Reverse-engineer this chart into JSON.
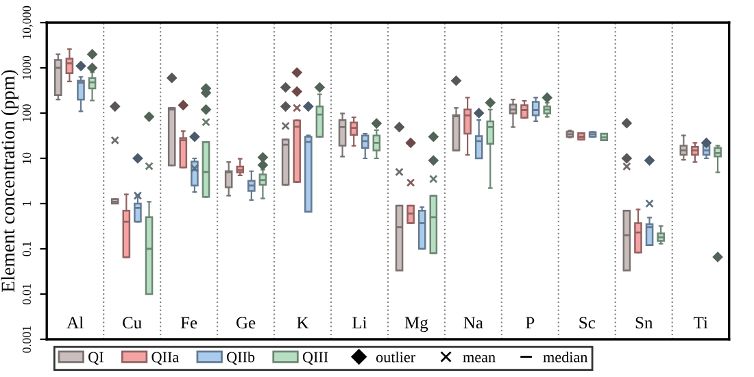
{
  "chart_data": {
    "type": "box",
    "ylabel": "Element concentration (ppm)",
    "categories": [
      "Al",
      "Cu",
      "Fe",
      "Ge",
      "K",
      "Li",
      "Mg",
      "Na",
      "P",
      "Sc",
      "Sn",
      "Ti"
    ],
    "log": "y",
    "ylim": [
      0.001,
      10000
    ],
    "yticks": [
      {
        "value": 0.001,
        "label": "0.001"
      },
      {
        "value": 0.01,
        "label": "0.01"
      },
      {
        "value": 0.1,
        "label": "0.1"
      },
      1,
      10,
      100,
      1000,
      {
        "value": 10000,
        "label": "10,000"
      }
    ],
    "grid": false,
    "legend": "bottom",
    "marker": "diamond",
    "annotations": [
      "outlier",
      "mean",
      "median"
    ],
    "series": [
      {
        "name": "QI",
        "color": "#c9bebc",
        "boxes": [
          {
            "low": 200,
            "q1": 250,
            "median": 1000,
            "q3": 1500,
            "high": 2000
          },
          {
            "low": 1.0,
            "q1": 1.0,
            "median": 1.1,
            "q3": 1.25,
            "high": 1.25,
            "mean": 25,
            "outliers": [
              140
            ]
          },
          {
            "low": 7,
            "q1": 7,
            "median": 120,
            "q3": 130,
            "high": 130,
            "outliers": [
              600
            ]
          },
          {
            "low": 1.5,
            "q1": 2.3,
            "median": 4.9,
            "q3": 5.2,
            "high": 8.3
          },
          {
            "low": 2.6,
            "q1": 2.6,
            "median": 20,
            "q3": 26,
            "high": 26,
            "mean": 52,
            "outliers": [
              140,
              370
            ]
          },
          {
            "low": 11,
            "q1": 19,
            "median": 49,
            "q3": 70,
            "high": 98
          },
          {
            "low": 0.033,
            "q1": 0.033,
            "median": 0.3,
            "q3": 0.9,
            "high": 0.9,
            "mean": 5,
            "outliers": [
              49
            ]
          },
          {
            "low": 15,
            "q1": 15,
            "median": 85,
            "q3": 90,
            "high": 130,
            "outliers": [
              520
            ]
          },
          {
            "low": 49,
            "q1": 98,
            "median": 120,
            "q3": 155,
            "high": 200
          },
          {
            "low": 29,
            "q1": 30,
            "median": 34,
            "q3": 39,
            "high": 41
          },
          {
            "low": 0.033,
            "q1": 0.033,
            "median": 0.2,
            "q3": 0.7,
            "high": 0.7,
            "mean": 6.6,
            "outliers": [
              10,
              60
            ]
          },
          {
            "low": 9.3,
            "q1": 12,
            "median": 15,
            "q3": 19,
            "high": 32
          }
        ]
      },
      {
        "name": "QIIa",
        "color": "#f4a3a3",
        "boxes": [
          {
            "low": 500,
            "q1": 760,
            "median": 1260,
            "q3": 1600,
            "high": 2600
          },
          {
            "low": 0.065,
            "q1": 0.065,
            "median": 0.4,
            "q3": 0.7,
            "high": 1.6
          },
          {
            "low": 6.3,
            "q1": 6.3,
            "median": 25,
            "q3": 28,
            "high": 40,
            "outliers": [
              150
            ]
          },
          {
            "low": 4.2,
            "q1": 4.9,
            "median": 5.5,
            "q3": 6.6,
            "high": 9.8
          },
          {
            "low": 3,
            "q1": 3,
            "median": 50,
            "q3": 69,
            "high": 69,
            "mean": 130,
            "outliers": [
              300,
              790
            ]
          },
          {
            "low": 19,
            "q1": 33,
            "median": 47,
            "q3": 62,
            "high": 81
          },
          {
            "low": 0.37,
            "q1": 0.37,
            "median": 0.6,
            "q3": 0.9,
            "high": 0.9,
            "mean": 2.9,
            "outliers": [
              22
            ]
          },
          {
            "low": 12,
            "q1": 35,
            "median": 89,
            "q3": 120,
            "high": 220
          },
          {
            "low": 78,
            "q1": 79,
            "median": 117,
            "q3": 150,
            "high": 186
          },
          {
            "low": 26,
            "q1": 26,
            "median": 30,
            "q3": 36,
            "high": 36
          },
          {
            "low": 0.083,
            "q1": 0.083,
            "median": 0.23,
            "q3": 0.37,
            "high": 0.74
          },
          {
            "low": 8.3,
            "q1": 12,
            "median": 15,
            "q3": 18,
            "high": 22
          }
        ]
      },
      {
        "name": "QIIb",
        "color": "#a9cbee",
        "boxes": [
          {
            "low": 110,
            "q1": 200,
            "median": 470,
            "q3": 520,
            "high": 630,
            "outliers": [
              1100
            ]
          },
          {
            "low": 0.4,
            "q1": 0.4,
            "median": 0.8,
            "q3": 1.0,
            "high": 1.5,
            "mean": 1.5,
            "outliers": [
              10
            ]
          },
          {
            "low": 1.8,
            "q1": 2.5,
            "median": 5.5,
            "q3": 8.5,
            "high": 10,
            "mean": 6,
            "outliers": [
              30
            ]
          },
          {
            "low": 1.2,
            "q1": 1.9,
            "median": 2.5,
            "q3": 3.2,
            "high": 5.2
          },
          {
            "low": 0.66,
            "q1": 0.66,
            "median": 23,
            "q3": 30,
            "high": 32,
            "outliers": [
              140
            ]
          },
          {
            "low": 10,
            "q1": 17,
            "median": 24,
            "q3": 32,
            "high": 35
          },
          {
            "low": 0.1,
            "q1": 0.1,
            "median": 0.37,
            "q3": 0.7,
            "high": 0.83
          },
          {
            "low": 10,
            "q1": 10,
            "median": 24,
            "q3": 31,
            "high": 70,
            "outliers": [
              100
            ]
          },
          {
            "low": 66,
            "q1": 89,
            "median": 117,
            "q3": 178,
            "high": 220
          },
          {
            "low": 30,
            "q1": 30,
            "median": 34,
            "q3": 38,
            "high": 38
          },
          {
            "low": 0.12,
            "q1": 0.12,
            "median": 0.3,
            "q3": 0.35,
            "high": 0.49,
            "mean": 1.0,
            "outliers": [
              9
            ]
          },
          {
            "low": 10,
            "q1": 12,
            "median": 15,
            "q3": 19,
            "high": 19,
            "outliers": [
              22
            ]
          }
        ]
      },
      {
        "name": "QIII",
        "color": "#b6dfc2",
        "boxes": [
          {
            "low": 190,
            "q1": 350,
            "median": 480,
            "q3": 600,
            "high": 800,
            "outliers": [
              1000,
              2000
            ]
          },
          {
            "low": 0.01,
            "q1": 0.01,
            "median": 0.1,
            "q3": 0.5,
            "high": 1.1,
            "mean": 6.7,
            "outliers": [
              83
            ]
          },
          {
            "low": 1.4,
            "q1": 1.4,
            "median": 5,
            "q3": 23,
            "high": 23,
            "mean": 63,
            "outliers": [
              120,
              280,
              350
            ]
          },
          {
            "low": 1.3,
            "q1": 2.6,
            "median": 3.3,
            "q3": 4.4,
            "high": 5.6,
            "outliers": [
              7.1,
              10.5
            ]
          },
          {
            "low": 30,
            "q1": 30,
            "median": 93,
            "q3": 140,
            "high": 260,
            "outliers": [
              370
            ]
          },
          {
            "low": 10,
            "q1": 15,
            "median": 22,
            "q3": 32,
            "high": 42,
            "outliers": [
              59
            ]
          },
          {
            "low": 0.08,
            "q1": 0.08,
            "median": 0.5,
            "q3": 1.5,
            "high": 1.5,
            "mean": 3.5,
            "outliers": [
              9,
              30
            ]
          },
          {
            "low": 2.2,
            "q1": 21,
            "median": 49,
            "q3": 66,
            "high": 120,
            "outliers": [
              170
            ]
          },
          {
            "low": 83,
            "q1": 98,
            "median": 120,
            "q3": 141,
            "high": 170,
            "outliers": [
              220
            ]
          },
          {
            "low": 25,
            "q1": 25,
            "median": 29,
            "q3": 35,
            "high": 35
          },
          {
            "low": 0.13,
            "q1": 0.15,
            "median": 0.18,
            "q3": 0.22,
            "high": 0.32
          },
          {
            "low": 4.9,
            "q1": 11,
            "median": 13,
            "q3": 17,
            "high": 19,
            "outliers": [
              0.066
            ]
          }
        ]
      }
    ]
  }
}
